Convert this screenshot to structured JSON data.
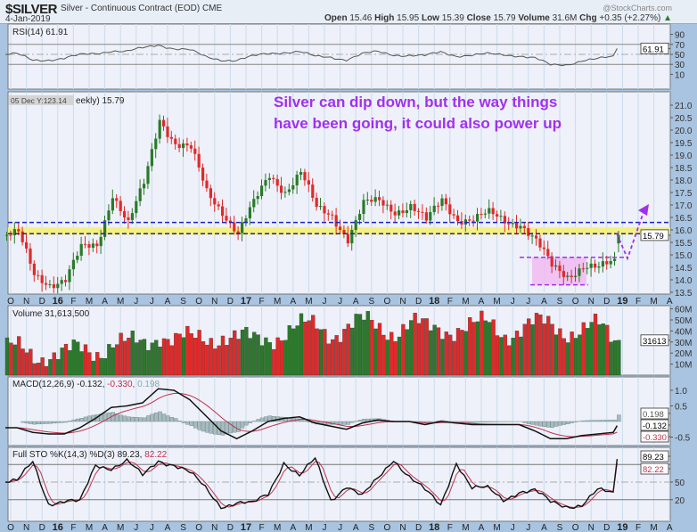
{
  "header": {
    "symbol": "$SILVER",
    "description": "Silver - Continuous Contract (EOD)",
    "exchange": "CME",
    "date": "4-Jan-2019",
    "brand": "@StockCharts.com",
    "open_label": "Open",
    "open": "15.46",
    "high_label": "High",
    "high": "15.95",
    "low_label": "Low",
    "low": "15.39",
    "close_label": "Close",
    "close": "15.79",
    "volume_label": "Volume",
    "volume": "31.6M",
    "chg_label": "Chg",
    "chg": "+0.35 (+2.27%)"
  },
  "annotation": {
    "line1": "Silver can dip down, but the way things",
    "line2": "have been going,  it could also power up"
  },
  "colors": {
    "up": "#2a7a2a",
    "down": "#e02a2a",
    "annotation": "#a030f0",
    "support": "#2020c0",
    "band": "#f4f080"
  },
  "chart_data": [
    {
      "type": "line",
      "title": "RSI(14) 61.91",
      "last": "61.91",
      "yticks": [
        "90",
        "70",
        "50",
        "30",
        "10"
      ],
      "ylim": [
        0,
        100
      ],
      "values": [
        50,
        38,
        40,
        42,
        48,
        52,
        58,
        55,
        62,
        70,
        62,
        58,
        45,
        40,
        38,
        45,
        52,
        55,
        55,
        45,
        45,
        40,
        50,
        55,
        50,
        48,
        46,
        55,
        48,
        48,
        50,
        50,
        48,
        42,
        28,
        30,
        38,
        40,
        45,
        61.91
      ]
    },
    {
      "type": "candlestick",
      "title": "05 Dec Y:123.14",
      "subtitle": "eekly) 15.79",
      "last": "15.79",
      "ylim": [
        13.3,
        21.3
      ],
      "yticks": [
        "21.0",
        "20.5",
        "20.0",
        "19.5",
        "19.0",
        "18.5",
        "18.0",
        "17.5",
        "17.0",
        "16.5",
        "16.0",
        "15.5",
        "15.0",
        "14.5",
        "14.0",
        "13.5"
      ],
      "monthly_close": [
        15.8,
        14.2,
        13.9,
        14.0,
        15.2,
        15.4,
        17.5,
        16.2,
        17.8,
        20.5,
        19.5,
        19.2,
        17.5,
        16.8,
        15.9,
        17.0,
        18.2,
        17.6,
        18.3,
        16.8,
        16.6,
        15.7,
        17.0,
        17.1,
        16.8,
        17.0,
        16.3,
        17.2,
        16.5,
        16.4,
        16.6,
        16.4,
        16.3,
        15.5,
        14.5,
        14.2,
        14.6,
        14.4,
        14.7,
        15.79
      ],
      "resistance": [
        16.3,
        15.85
      ],
      "band": [
        15.8,
        16.1
      ],
      "range_top": 14.9,
      "range_bottom": 13.8
    },
    {
      "type": "bar",
      "title": "Volume 31,613,500",
      "last": "31613",
      "yticks": [
        "60M",
        "50M",
        "40M",
        "30M",
        "20M",
        "10M"
      ],
      "ylim": [
        0,
        64
      ],
      "monthly_avg": [
        22,
        20,
        20,
        18,
        22,
        24,
        30,
        26,
        28,
        40,
        32,
        30,
        34,
        38,
        32,
        30,
        36,
        40,
        42,
        44,
        40,
        44,
        46,
        44,
        42,
        46,
        40,
        44,
        44,
        42,
        46,
        40,
        42,
        44,
        46,
        42,
        40,
        42,
        34,
        31.6
      ]
    },
    {
      "type": "line",
      "title": "MACD(12,26,9)",
      "values_text": "-0.132,",
      "signal_text": "-0.330,",
      "hist_text": "0.198",
      "yticks": [
        "1.0",
        "0.5",
        "-0.5"
      ],
      "labels": [
        "0.198",
        "-0.132",
        "-0.330"
      ],
      "macd": [
        -0.2,
        -0.35,
        -0.4,
        -0.4,
        -0.2,
        0.1,
        0.45,
        0.5,
        0.6,
        1.05,
        1.0,
        0.7,
        0.2,
        -0.3,
        -0.55,
        -0.3,
        0.0,
        0.1,
        0.15,
        -0.05,
        -0.15,
        -0.25,
        -0.05,
        0.05,
        0.0,
        0.0,
        -0.1,
        0.0,
        -0.05,
        -0.1,
        -0.1,
        -0.1,
        -0.1,
        -0.3,
        -0.55,
        -0.55,
        -0.45,
        -0.4,
        -0.35,
        -0.132
      ]
    },
    {
      "type": "line",
      "title": "Full STO %K(14,3) %D(3)",
      "k_text": "89.23,",
      "d_text": "82.22",
      "yticks": [
        "50",
        "20"
      ],
      "labels": [
        "89.23",
        "82.22"
      ],
      "ylim": [
        0,
        100
      ],
      "k": [
        50,
        85,
        15,
        17,
        15,
        80,
        75,
        85,
        60,
        88,
        80,
        65,
        40,
        10,
        15,
        12,
        30,
        85,
        60,
        88,
        20,
        45,
        25,
        55,
        90,
        60,
        35,
        10,
        85,
        40,
        38,
        20,
        35,
        35,
        15,
        10,
        12,
        35,
        30,
        89.23
      ]
    }
  ],
  "x_axis": [
    "O",
    "N",
    "D",
    "16",
    "F",
    "M",
    "A",
    "M",
    "J",
    "J",
    "A",
    "S",
    "O",
    "N",
    "D",
    "17",
    "F",
    "M",
    "A",
    "M",
    "J",
    "J",
    "A",
    "S",
    "O",
    "N",
    "D",
    "18",
    "F",
    "M",
    "A",
    "M",
    "J",
    "J",
    "A",
    "S",
    "O",
    "N",
    "D",
    "19",
    "F",
    "M",
    "A"
  ]
}
